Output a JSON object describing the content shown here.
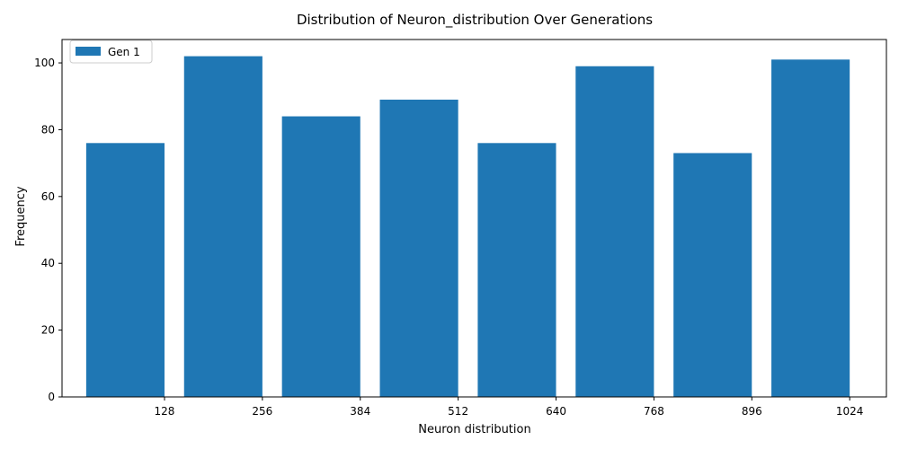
{
  "chart_data": {
    "type": "bar",
    "title": "Distribution of Neuron_distribution Over Generations",
    "xlabel": "Neuron distribution",
    "ylabel": "Frequency",
    "x_ticks": [
      128,
      256,
      384,
      512,
      640,
      768,
      896,
      1024
    ],
    "x_tick_labels": [
      "128",
      "256",
      "384",
      "512",
      "640",
      "768",
      "896",
      "1024"
    ],
    "y_ticks": [
      0,
      20,
      40,
      60,
      80,
      100
    ],
    "y_tick_labels": [
      "0",
      "20",
      "40",
      "60",
      "80",
      "100"
    ],
    "xlim": [
      -6,
      1072
    ],
    "ylim": [
      0,
      107
    ],
    "legend_position": "upper-left",
    "series": [
      {
        "name": "Gen 1",
        "color": "#1f77b4",
        "bins": [
          {
            "start": 25.6,
            "end": 128,
            "value": 76
          },
          {
            "start": 153.6,
            "end": 256,
            "value": 102
          },
          {
            "start": 281.6,
            "end": 384,
            "value": 84
          },
          {
            "start": 409.6,
            "end": 512,
            "value": 89
          },
          {
            "start": 537.6,
            "end": 640,
            "value": 76
          },
          {
            "start": 665.6,
            "end": 768,
            "value": 99
          },
          {
            "start": 793.6,
            "end": 896,
            "value": 73
          },
          {
            "start": 921.6,
            "end": 1024,
            "value": 101
          }
        ]
      }
    ]
  }
}
